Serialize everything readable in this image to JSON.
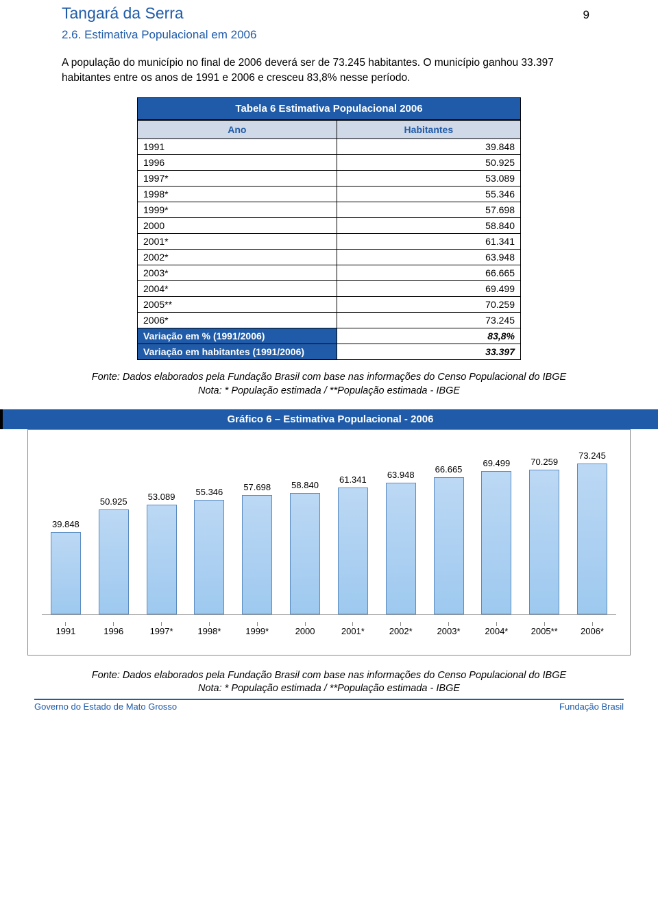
{
  "page_number": "9",
  "main_title": "Tangará da Serra",
  "section_title": "2.6. Estimativa Populacional em 2006",
  "intro_text": "A população do município no final de 2006 deverá ser de 73.245 habitantes. O município ganhou 33.397 habitantes entre os anos de 1991 e 2006 e cresceu 83,8% nesse período.",
  "table": {
    "title": "Tabela 6 Estimativa Populacional 2006",
    "col_year": "Ano",
    "col_value": "Habitantes",
    "rows": [
      {
        "year": "1991",
        "value": "39.848"
      },
      {
        "year": "1996",
        "value": "50.925"
      },
      {
        "year": "1997*",
        "value": "53.089"
      },
      {
        "year": "1998*",
        "value": "55.346"
      },
      {
        "year": "1999*",
        "value": "57.698"
      },
      {
        "year": "2000",
        "value": "58.840"
      },
      {
        "year": "2001*",
        "value": "61.341"
      },
      {
        "year": "2002*",
        "value": "63.948"
      },
      {
        "year": "2003*",
        "value": "66.665"
      },
      {
        "year": "2004*",
        "value": "69.499"
      },
      {
        "year": "2005**",
        "value": "70.259"
      },
      {
        "year": "2006*",
        "value": "73.245"
      }
    ],
    "var_pct_label": "Variação em % (1991/2006)",
    "var_pct_value": "83,8%",
    "var_hab_label": "Variação em habitantes (1991/2006)",
    "var_hab_value": "33.397"
  },
  "source_note_1": "Fonte: Dados elaborados pela Fundação Brasil com base nas informações do Censo Populacional do IBGE",
  "source_note_2": "Nota: * População estimada / **População estimada - IBGE",
  "chart": {
    "title": "Gráfico 6 – Estimativa Populacional - 2006",
    "type": "bar",
    "bar_fill_top": "#bcd8f4",
    "bar_fill_bottom": "#9ec9ef",
    "bar_border": "#5a8bc0",
    "background": "#ffffff",
    "border_color": "#888888",
    "ylim": [
      0,
      80000
    ],
    "label_fontsize": 13,
    "bars": [
      {
        "category": "1991",
        "label": "39.848",
        "value": 39848
      },
      {
        "category": "1996",
        "label": "50.925",
        "value": 50925
      },
      {
        "category": "1997*",
        "label": "53.089",
        "value": 53089
      },
      {
        "category": "1998*",
        "label": "55.346",
        "value": 55346
      },
      {
        "category": "1999*",
        "label": "57.698",
        "value": 57698
      },
      {
        "category": "2000",
        "label": "58.840",
        "value": 58840
      },
      {
        "category": "2001*",
        "label": "61.341",
        "value": 61341
      },
      {
        "category": "2002*",
        "label": "63.948",
        "value": 63948
      },
      {
        "category": "2003*",
        "label": "66.665",
        "value": 66665
      },
      {
        "category": "2004*",
        "label": "69.499",
        "value": 69499
      },
      {
        "category": "2005**",
        "label": "70.259",
        "value": 70259
      },
      {
        "category": "2006*",
        "label": "73.245",
        "value": 73245
      }
    ]
  },
  "footer_source_1": "Fonte: Dados elaborados pela Fundação Brasil com base nas informações do Censo Populacional do IBGE",
  "footer_source_2": "Nota: * População estimada / **População estimada - IBGE",
  "footer_left": "Governo do Estado de Mato Grosso",
  "footer_right": "Fundação Brasil"
}
